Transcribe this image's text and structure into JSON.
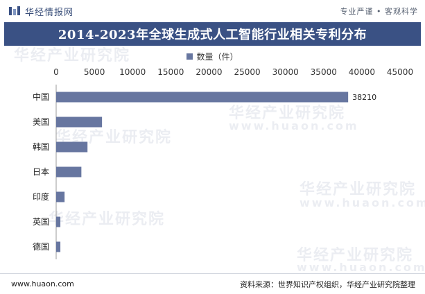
{
  "brand": {
    "name": "华经情报网",
    "tagline": "专业严谨 • 客观科学",
    "logo_icon": "brand-logo-icon"
  },
  "watermark": {
    "text": "华经产业研究院",
    "url": "www.huaon.com"
  },
  "chart_data": {
    "type": "bar",
    "orientation": "horizontal",
    "title": "2014-2023年全球生成式人工智能行业相关专利分布",
    "categories": [
      "中国",
      "美国",
      "韩国",
      "日本",
      "印度",
      "英国",
      "德国"
    ],
    "series": [
      {
        "name": "数量（件）",
        "values": [
          38210,
          6000,
          4100,
          3300,
          1100,
          550,
          550
        ]
      }
    ],
    "value_labels": [
      "38210"
    ],
    "xlim": [
      0,
      45000
    ],
    "x_ticks": [
      "0",
      "5000",
      "10000",
      "15000",
      "20000",
      "25000",
      "30000",
      "35000",
      "40000",
      "45000"
    ],
    "x_axis_position": "top",
    "grid": false,
    "legend_position": "top-center",
    "colors": {
      "bar": "#6776a0",
      "title_bg": "#3a5184"
    }
  },
  "footer": {
    "url": "www.huaon.com",
    "source": "资料来源：世界知识产权组织，华经产业研究院整理"
  }
}
